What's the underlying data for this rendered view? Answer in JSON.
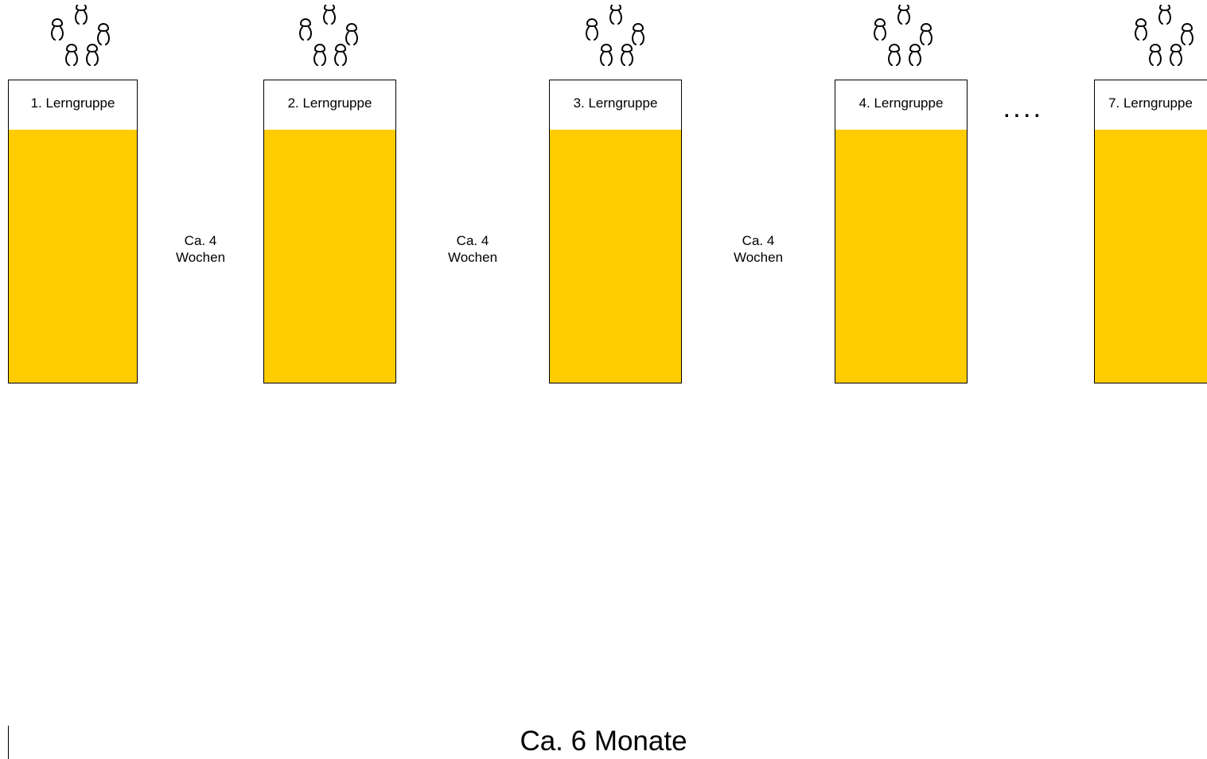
{
  "groups": [
    {
      "label": "1. Lerngruppe"
    },
    {
      "label": "2. Lerngruppe"
    },
    {
      "label": "3. Lerngruppe"
    },
    {
      "label": "4. Lerngruppe"
    },
    {
      "label": "7. Lerngruppe"
    }
  ],
  "intervals": [
    {
      "line1": "Ca. 4",
      "line2": "Wochen"
    },
    {
      "line1": "Ca. 4",
      "line2": "Wochen"
    },
    {
      "line1": "Ca. 4",
      "line2": "Wochen"
    }
  ],
  "ellipsis": "....",
  "total_duration": "Ca. 6 Monate",
  "colors": {
    "group_fill": "#FFCC00",
    "outline": "#000000"
  },
  "icons": {
    "group_members": "people-cluster-icon"
  }
}
